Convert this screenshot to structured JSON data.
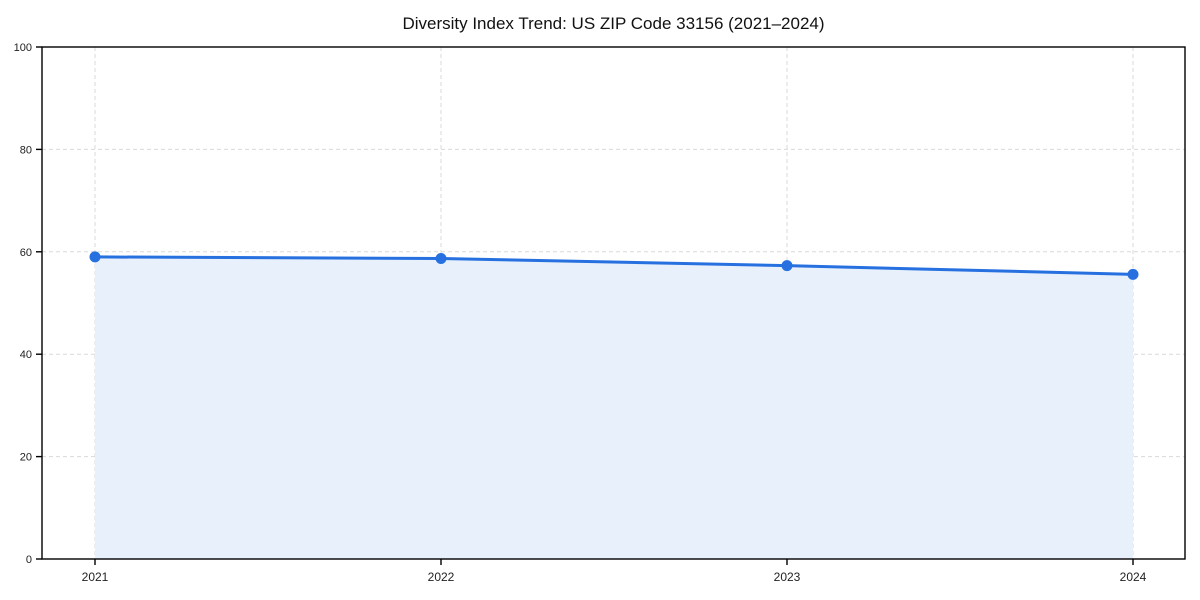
{
  "title": "Diversity Index Trend: US ZIP Code 33156 (2021–2024)",
  "chart_data": {
    "type": "area",
    "title": "Diversity Index Trend: US ZIP Code 33156 (2021–2024)",
    "x": [
      2021,
      2022,
      2023,
      2024
    ],
    "xtick_labels": [
      "2021",
      "2022",
      "2023",
      "2024"
    ],
    "series": [
      {
        "name": "Diversity Index",
        "values": [
          59.0,
          58.7,
          57.3,
          55.6
        ]
      }
    ],
    "xlabel": "",
    "ylabel": "",
    "ylim": [
      0,
      100
    ],
    "yticks": [
      0,
      20,
      40,
      60,
      80,
      100
    ],
    "grid": true,
    "grid_style": "dashed",
    "legend": false,
    "colors": {
      "line": "#2670e0",
      "marker": "#2670e0",
      "fill": "#e8f0fb",
      "grid": "#d9d9d9",
      "axis": "#000000",
      "tick_text": "#222222",
      "title_text": "#111111",
      "background": "#ffffff"
    }
  }
}
